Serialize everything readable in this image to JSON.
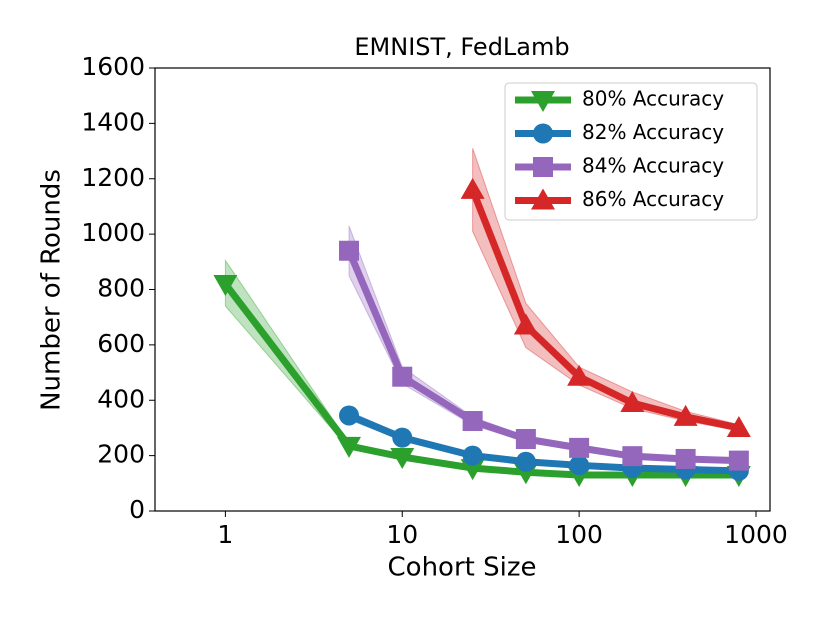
{
  "chart_data": {
    "type": "line",
    "title": "EMNIST, FedLamb",
    "xlabel": "Cohort Size",
    "ylabel": "Number of Rounds",
    "xscale": "log",
    "xlim": [
      0.4,
      1200
    ],
    "xticks": [
      1,
      10,
      100,
      1000
    ],
    "ylim": [
      0,
      1600
    ],
    "yticks": [
      0,
      200,
      400,
      600,
      800,
      1000,
      1200,
      1400,
      1600
    ],
    "grid": false,
    "legend": "upper right",
    "series": [
      {
        "name": "80% Accuracy",
        "color": "#2ca02c",
        "marker": "triangle-down",
        "x": [
          1,
          5,
          10,
          25,
          50,
          100,
          200,
          400,
          800
        ],
        "values": [
          820,
          235,
          195,
          155,
          140,
          130,
          130,
          130,
          130
        ],
        "lower": [
          740,
          225,
          188,
          150,
          135,
          126,
          126,
          126,
          126
        ],
        "upper": [
          905,
          245,
          202,
          160,
          145,
          134,
          134,
          134,
          134
        ]
      },
      {
        "name": "82% Accuracy",
        "color": "#1f77b4",
        "marker": "circle",
        "x": [
          5,
          10,
          25,
          50,
          100,
          200,
          400,
          800
        ],
        "values": [
          345,
          265,
          200,
          178,
          165,
          155,
          150,
          145
        ],
        "lower": [
          330,
          255,
          192,
          172,
          158,
          149,
          144,
          139
        ],
        "upper": [
          360,
          275,
          208,
          184,
          172,
          161,
          156,
          151
        ]
      },
      {
        "name": "84% Accuracy",
        "color": "#9467bd",
        "marker": "square",
        "x": [
          5,
          10,
          25,
          50,
          100,
          200,
          400,
          800
        ],
        "values": [
          940,
          485,
          325,
          260,
          228,
          198,
          188,
          182
        ],
        "lower": [
          850,
          460,
          310,
          250,
          218,
          190,
          180,
          175
        ],
        "upper": [
          1030,
          520,
          340,
          270,
          238,
          206,
          196,
          190
        ]
      },
      {
        "name": "86% Accuracy",
        "color": "#d62728",
        "marker": "triangle-up",
        "x": [
          25,
          50,
          100,
          200,
          400,
          800
        ],
        "values": [
          1160,
          670,
          485,
          390,
          340,
          300
        ],
        "lower": [
          1010,
          590,
          455,
          370,
          325,
          290
        ],
        "upper": [
          1310,
          750,
          520,
          430,
          360,
          312
        ]
      }
    ]
  }
}
